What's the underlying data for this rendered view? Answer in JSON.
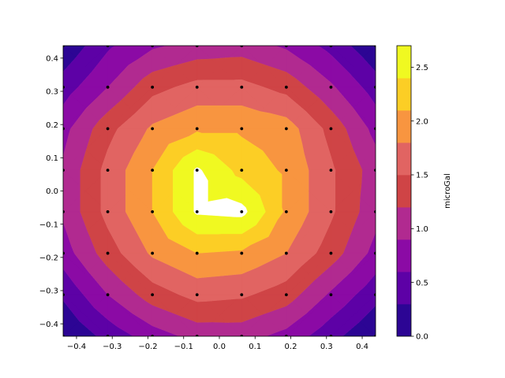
{
  "chart_data": {
    "type": "contourf",
    "title": "",
    "xlabel": "",
    "ylabel": "",
    "xlim": [
      -0.4375,
      0.4375
    ],
    "ylim": [
      -0.4375,
      0.4375
    ],
    "xticks": [
      -0.4,
      -0.3,
      -0.2,
      -0.1,
      0.0,
      0.1,
      0.2,
      0.3,
      0.4
    ],
    "xtick_labels": [
      "−0.4",
      "−0.3",
      "−0.2",
      "−0.1",
      "0.0",
      "0.1",
      "0.2",
      "0.3",
      "0.4"
    ],
    "yticks": [
      -0.4,
      -0.3,
      -0.2,
      -0.1,
      0.0,
      0.1,
      0.2,
      0.3,
      0.4
    ],
    "ytick_labels": [
      "−0.4",
      "−0.3",
      "−0.2",
      "−0.1",
      "0.0",
      "0.1",
      "0.2",
      "0.3",
      "0.4"
    ],
    "grid": false,
    "x": [
      -0.4375,
      -0.3125,
      -0.1875,
      -0.0625,
      0.0625,
      0.1875,
      0.3125,
      0.4375
    ],
    "y": [
      -0.4375,
      -0.3125,
      -0.1875,
      -0.0625,
      0.0625,
      0.1875,
      0.3125,
      0.4375
    ],
    "z": [
      [
        0.0,
        0.4,
        0.75,
        1.0,
        1.02,
        0.8,
        0.4,
        0.02
      ],
      [
        0.35,
        0.9,
        1.35,
        1.6,
        1.55,
        1.35,
        0.85,
        0.4
      ],
      [
        0.75,
        1.35,
        1.85,
        2.1,
        2.05,
        1.8,
        1.35,
        0.8
      ],
      [
        0.95,
        1.6,
        2.1,
        2.75,
        2.8,
        2.05,
        1.55,
        1.0
      ],
      [
        0.95,
        1.6,
        2.1,
        2.75,
        2.3,
        2.05,
        1.55,
        1.05
      ],
      [
        0.8,
        1.4,
        1.85,
        2.05,
        2.05,
        1.95,
        1.4,
        0.8
      ],
      [
        0.45,
        0.9,
        1.4,
        1.6,
        1.6,
        1.4,
        0.95,
        0.45
      ],
      [
        0.05,
        0.55,
        0.85,
        1.0,
        1.05,
        0.85,
        0.5,
        0.05
      ]
    ],
    "levels": [
      0.0,
      0.3,
      0.6,
      0.9,
      1.2,
      1.5,
      1.8,
      2.1,
      2.4,
      2.7
    ],
    "level_colors": [
      "#2c0594",
      "#5d01a6",
      "#8b0aa5",
      "#b12a90",
      "#cf4446",
      "#e16462",
      "#f89540",
      "#fcce25",
      "#f0f921"
    ],
    "colormap": "plasma",
    "colorbar": {
      "label": "microGal",
      "ticks": [
        0.0,
        0.5,
        1.0,
        1.5,
        2.0,
        2.5
      ],
      "tick_labels": [
        "0.0",
        "0.5",
        "1.0",
        "1.5",
        "2.0",
        "2.5"
      ],
      "range": [
        0.0,
        2.7
      ]
    },
    "legend": "none",
    "markers": {
      "style": "dot",
      "color": "#000000"
    }
  }
}
